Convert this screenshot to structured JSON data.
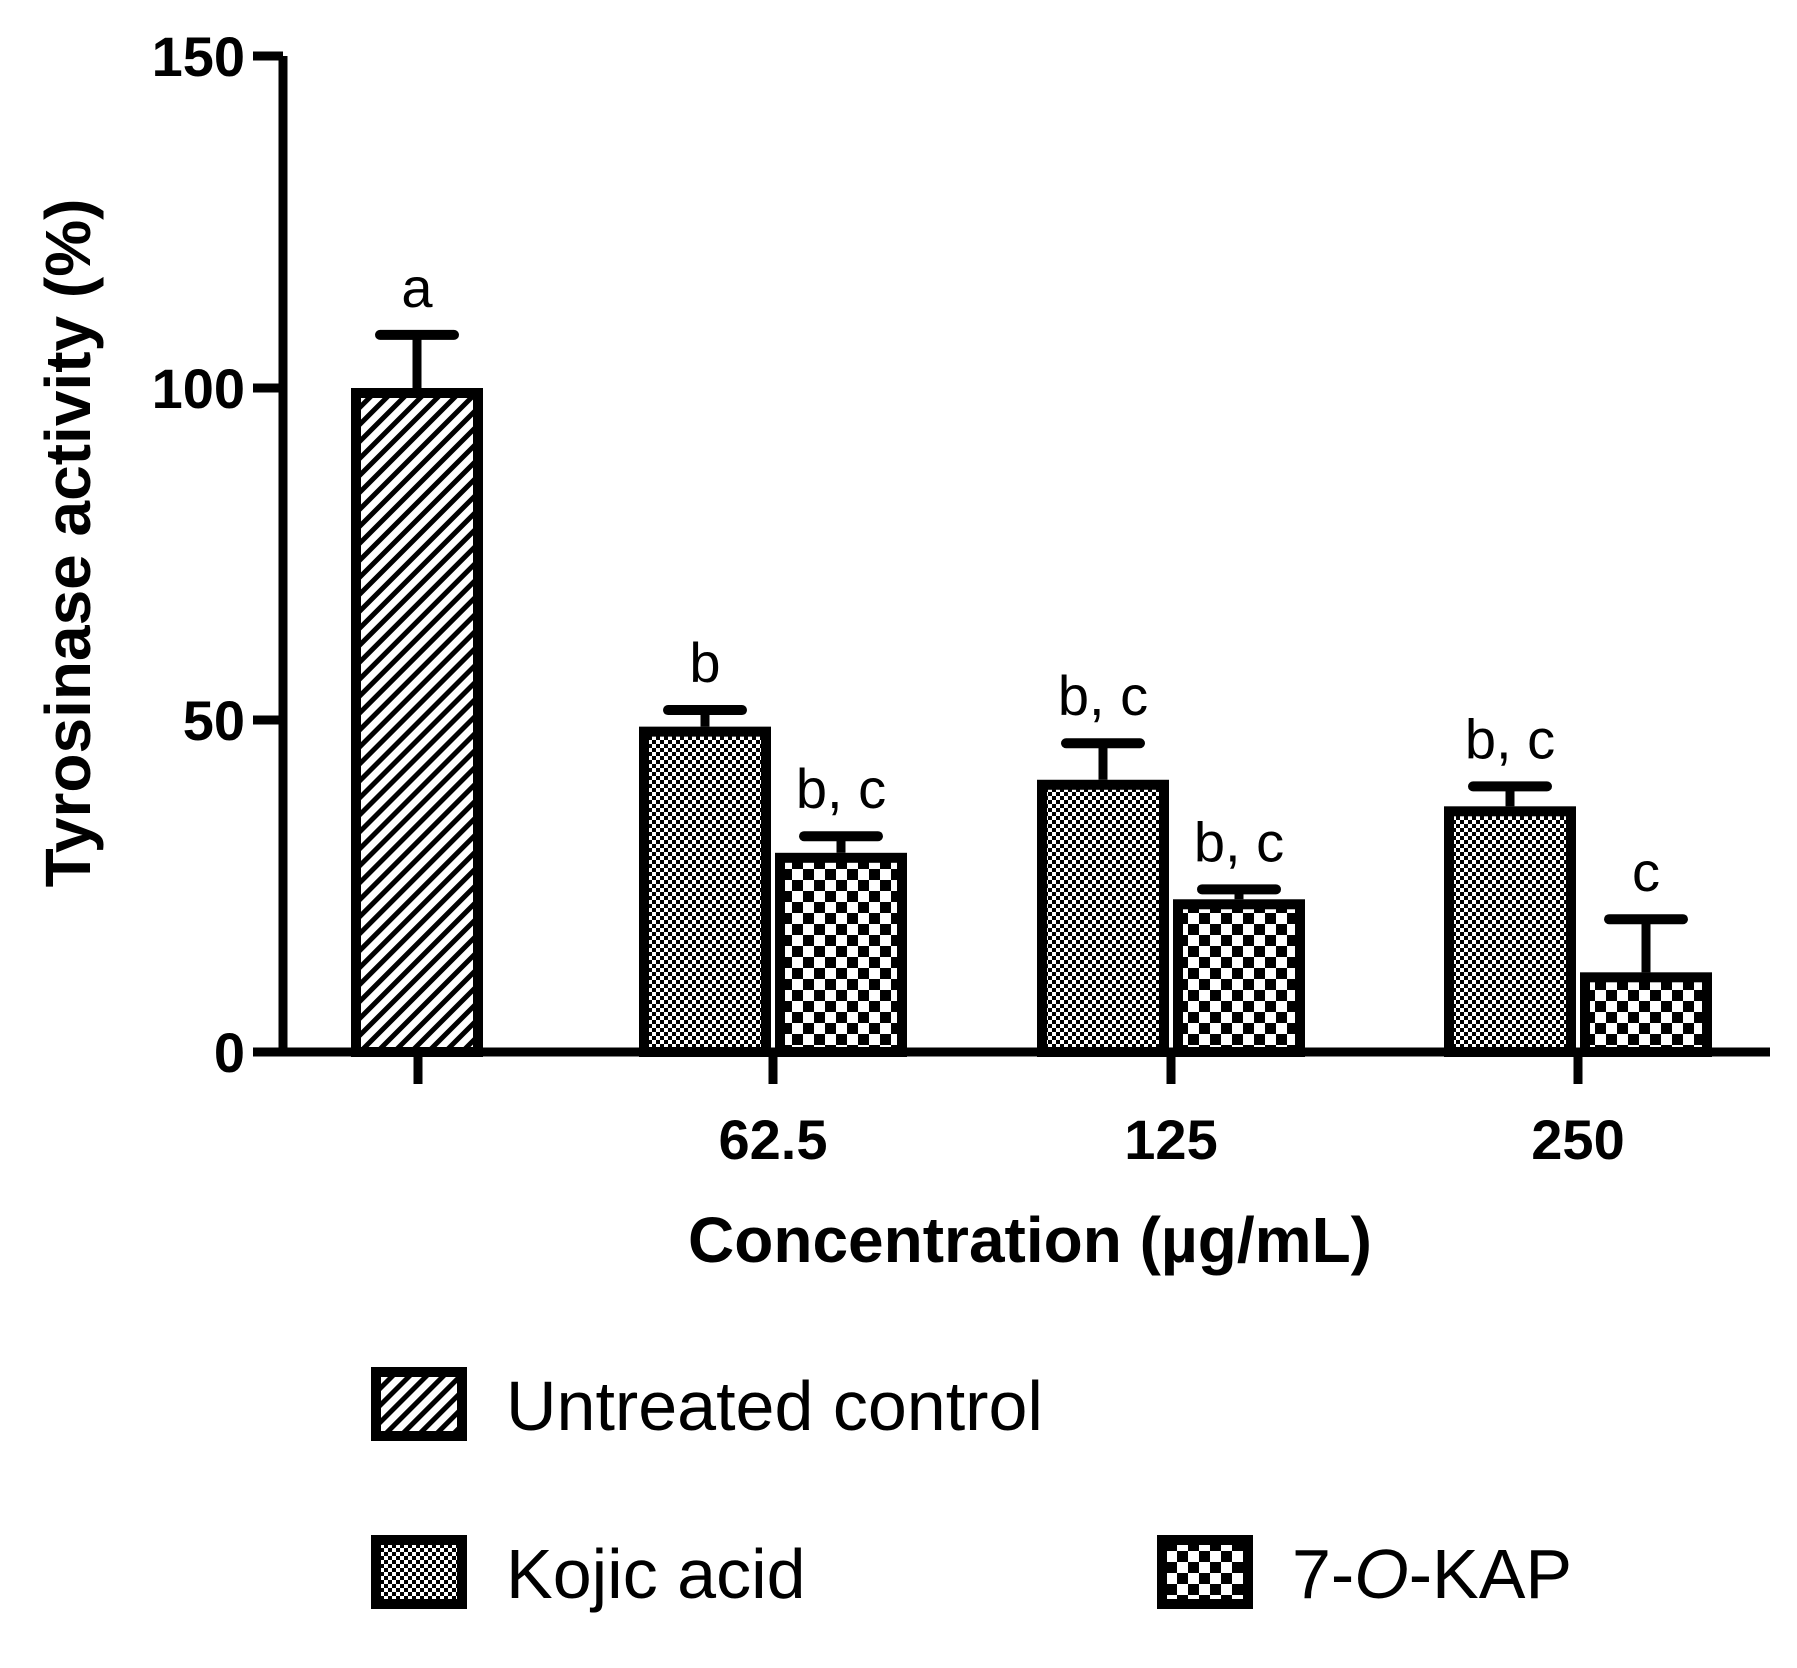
{
  "chart_data": {
    "type": "bar",
    "ylabel": "Tyrosinase activity (%)",
    "xlabel": "Concentration (µg/mL)",
    "ylim": [
      0,
      150
    ],
    "yticks": [
      0,
      50,
      100,
      150
    ],
    "categories": [
      "",
      "62.5",
      "125",
      "250"
    ],
    "series": [
      {
        "name": "Untreated control",
        "pattern": "diagonal",
        "values": [
          100,
          null,
          null,
          null
        ],
        "errors": [
          8,
          null,
          null,
          null
        ],
        "labels": [
          "a",
          null,
          null,
          null
        ]
      },
      {
        "name": "Kojic acid",
        "pattern": "fine-check",
        "values": [
          null,
          49,
          41,
          37
        ],
        "errors": [
          null,
          2.5,
          5.5,
          3
        ],
        "labels": [
          null,
          "b",
          "b, c",
          "b, c"
        ]
      },
      {
        "name": "7-O-KAP",
        "pattern": "coarse-check",
        "values": [
          null,
          30,
          23,
          12
        ],
        "errors": [
          null,
          2.5,
          1.5,
          8
        ],
        "labels": [
          null,
          "b, c",
          "b, c",
          "c"
        ]
      }
    ],
    "legend": {
      "placement": "bottom",
      "entries": [
        {
          "name": "Untreated control",
          "pattern": "diagonal"
        },
        {
          "name": "Kojic acid",
          "pattern": "fine-check"
        },
        {
          "name": "7-",
          "italic": "O",
          "suffix": "-KAP",
          "pattern": "coarse-check"
        }
      ]
    },
    "colors": {
      "ink": "#000000",
      "background": "#ffffff"
    }
  }
}
